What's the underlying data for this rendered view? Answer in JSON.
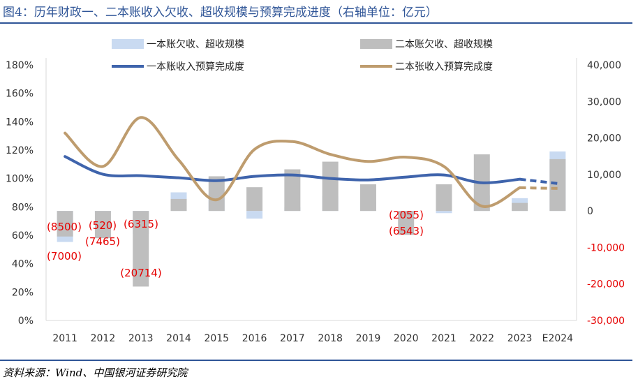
{
  "title": "图4：历年财政一、二本账收入欠收、超收规模与预算完成进度（右轴单位：亿元）",
  "source": "资料来源：Wind、中国银河证券研究院",
  "colors": {
    "general_bar": "#C9DAF1",
    "fund_bar": "#BEBEBE",
    "general_line": "#3F64AC",
    "fund_line": "#BE9C6E",
    "negative_tick": "#E60000",
    "annotation": "#E60000"
  },
  "chart_data": {
    "type": "bar",
    "categories": [
      "2011",
      "2012",
      "2013",
      "2014",
      "2015",
      "2016",
      "2017",
      "2018",
      "2019",
      "2020",
      "2021",
      "2022",
      "2023",
      "E2024"
    ],
    "left_axis": {
      "ticks": [
        "0%",
        "20%",
        "40%",
        "60%",
        "80%",
        "100%",
        "120%",
        "140%",
        "160%",
        "180%"
      ],
      "ylim": [
        0,
        180
      ]
    },
    "right_axis": {
      "ticks": [
        "-30,000",
        "-20,000",
        "-10,000",
        "0",
        "10,000",
        "20,000",
        "30,000",
        "40,000"
      ],
      "ylim": [
        -30000,
        40000
      ]
    },
    "legend": {
      "general_bar": "一本账欠收、超收规模",
      "fund_bar": "二本账欠收、超收规模",
      "general_line": "一本账收入预算完成度",
      "fund_line": "二本张收入预算完成度"
    },
    "series": [
      {
        "name": "一本账欠收、超收规模",
        "kind": "bar",
        "axis": "right",
        "values": [
          -8500,
          -520,
          -6315,
          5100,
          4800,
          -2100,
          1000,
          4000,
          2500,
          -2055,
          -600,
          4300,
          3500,
          16300
        ]
      },
      {
        "name": "二本账欠收、超收规模",
        "kind": "bar",
        "axis": "right",
        "values": [
          -7000,
          -7465,
          -20714,
          3300,
          9500,
          6500,
          11400,
          13500,
          7300,
          -6543,
          7300,
          15500,
          2200,
          14200
        ]
      },
      {
        "name": "一本账收入预算完成度",
        "kind": "line",
        "axis": "left",
        "values": [
          115.5,
          103,
          102,
          100.5,
          98.5,
          101.5,
          102.5,
          100,
          99,
          101,
          102.5,
          97,
          99.5,
          96.5
        ],
        "dashed_from_index": 12
      },
      {
        "name": "二本张收入预算完成度",
        "kind": "line",
        "axis": "left",
        "values": [
          132,
          108.5,
          143,
          113,
          85,
          120.5,
          126,
          117,
          112,
          115,
          108.5,
          80.5,
          93.5,
          93
        ],
        "dashed_from_index": 12
      }
    ],
    "annotations": [
      "(8500)",
      "(520)",
      "(6315)",
      "(7000)",
      "(7465)",
      "(20714)",
      "(2055)",
      "(6543)"
    ],
    "grid": false
  }
}
